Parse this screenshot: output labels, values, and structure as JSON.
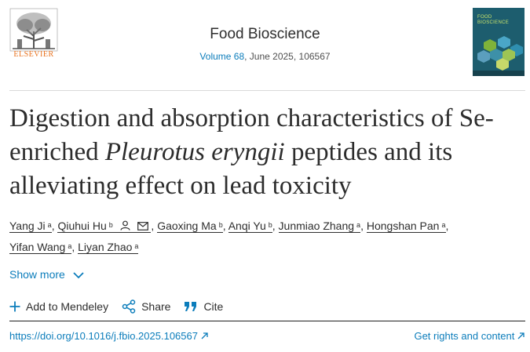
{
  "header": {
    "publisher_logo_text": "ELSEVIER",
    "journal_name": "Food Bioscience",
    "volume_link": "Volume 68",
    "issue_info": ", June 2025, 106567",
    "cover_title_line1": "FOOD",
    "cover_title_line2": "BIOSCIENCE"
  },
  "article": {
    "title_part1": "Digestion and absorption characteristics of Se-enriched ",
    "title_italic": "Pleurotus eryngii",
    "title_part2": " peptides and its alleviating effect on lead toxicity"
  },
  "authors": [
    {
      "name": "Yang Ji",
      "aff": "a"
    },
    {
      "name": "Qiuhui Hu",
      "aff": "b"
    },
    {
      "name": "Gaoxing Ma",
      "aff": "b"
    },
    {
      "name": "Anqi Yu",
      "aff": "b"
    },
    {
      "name": "Junmiao Zhang",
      "aff": "a"
    },
    {
      "name": "Hongshan Pan",
      "aff": "a"
    },
    {
      "name": "Yifan Wang",
      "aff": "a"
    },
    {
      "name": "Liyan Zhao",
      "aff": "a"
    }
  ],
  "show_more_label": "Show more",
  "actions": {
    "mendeley": "Add to Mendeley",
    "share": "Share",
    "cite": "Cite"
  },
  "footer": {
    "doi": "https://doi.org/10.1016/j.fbio.2025.106567",
    "rights": "Get rights and content"
  },
  "colors": {
    "link": "#0c7dbb",
    "elsevier_orange": "#e9711c",
    "cover_bg": "#1d5d6e"
  }
}
